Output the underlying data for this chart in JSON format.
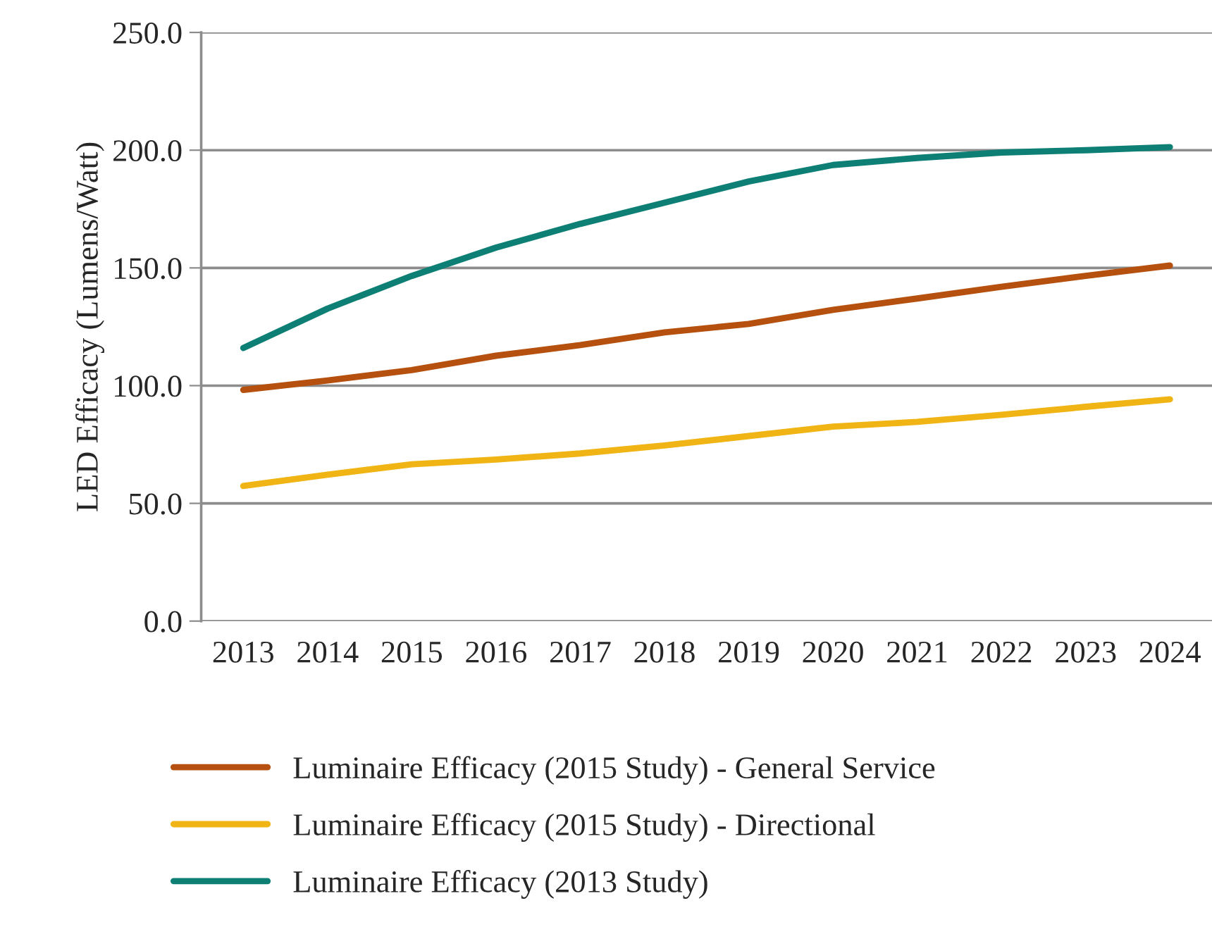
{
  "chart_data": {
    "type": "line",
    "ylabel": "LED Efficacy (Lumens/Watt)",
    "categories": [
      "2013",
      "2014",
      "2015",
      "2016",
      "2017",
      "2018",
      "2019",
      "2020",
      "2021",
      "2022",
      "2023",
      "2024"
    ],
    "series": [
      {
        "name": "Luminaire Efficacy (2015 Study) - General Service",
        "color": "#b5500e",
        "values": [
          98.2,
          102.2,
          106.6,
          112.7,
          117.2,
          122.6,
          126.2,
          132.2,
          137,
          142,
          146.6,
          151
        ]
      },
      {
        "name": "Luminaire Efficacy (2015 Study) - Directional",
        "color": "#f0b414",
        "values": [
          57.4,
          62.2,
          66.6,
          68.6,
          71.2,
          74.6,
          78.6,
          82.6,
          84.6,
          87.6,
          91,
          94.2
        ]
      },
      {
        "name": "Luminaire Efficacy (2013 Study)",
        "color": "#0e7f74",
        "values": [
          116,
          132.7,
          146.6,
          158.6,
          168.7,
          177.7,
          186.7,
          193.7,
          196.7,
          199,
          200,
          201.3
        ]
      }
    ],
    "ylim": [
      0,
      250
    ],
    "yticks": [
      {
        "value": 0,
        "label": "0.0"
      },
      {
        "value": 50,
        "label": "50.0"
      },
      {
        "value": 100,
        "label": "100.0"
      },
      {
        "value": 150,
        "label": "150.0"
      },
      {
        "value": 200,
        "label": "200.0"
      },
      {
        "value": 250,
        "label": "250.0"
      }
    ],
    "grid": "y",
    "legend": "bottom",
    "marker": "none",
    "line_style": "solid"
  }
}
